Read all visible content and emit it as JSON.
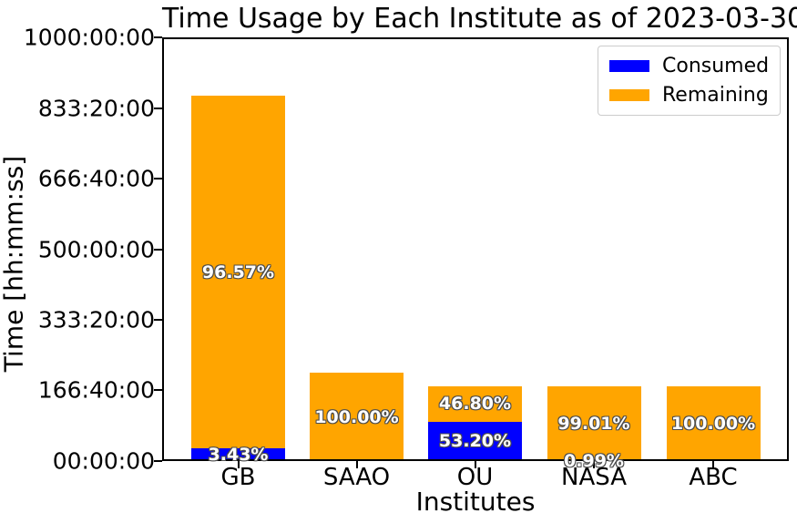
{
  "chart_data": {
    "type": "bar",
    "stacked": true,
    "title": "Time Usage by Each Institute as of 2023-03-30",
    "xlabel": "Institutes",
    "ylabel": "Time [hh:mm:ss]",
    "categories": [
      "GB",
      "SAAO",
      "OU",
      "NASA",
      "ABC"
    ],
    "series": [
      {
        "name": "Consumed",
        "color": "#0000ff",
        "values_hours": [
          29.6,
          0,
          93.4,
          1.74,
          0
        ],
        "percent_labels": [
          "3.43%",
          "",
          "53.20%",
          "0.99%",
          ""
        ]
      },
      {
        "name": "Remaining",
        "color": "#ffa500",
        "values_hours": [
          832.6,
          207.7,
          82.1,
          173.8,
          175.5
        ],
        "percent_labels": [
          "96.57%",
          "100.00%",
          "46.80%",
          "99.01%",
          "100.00%"
        ]
      }
    ],
    "totals_hours": [
      862.2,
      207.7,
      175.5,
      175.5,
      175.5
    ],
    "ylim_hours": [
      0,
      1000
    ],
    "ytick_values_hours": [
      0,
      166.6667,
      333.3333,
      500,
      666.6667,
      833.3333,
      1000
    ],
    "ytick_labels": [
      "00:00:00",
      "166:40:00",
      "333:20:00",
      "500:00:00",
      "666:40:00",
      "833:20:00",
      "1000:00:00"
    ],
    "grid": false,
    "legend_position": "upper right",
    "bar_label_text_color": "#ffffff",
    "bar_label_outline_color": "#4d4d4d",
    "axis_color": "#000000",
    "background_color": "#ffffff"
  }
}
